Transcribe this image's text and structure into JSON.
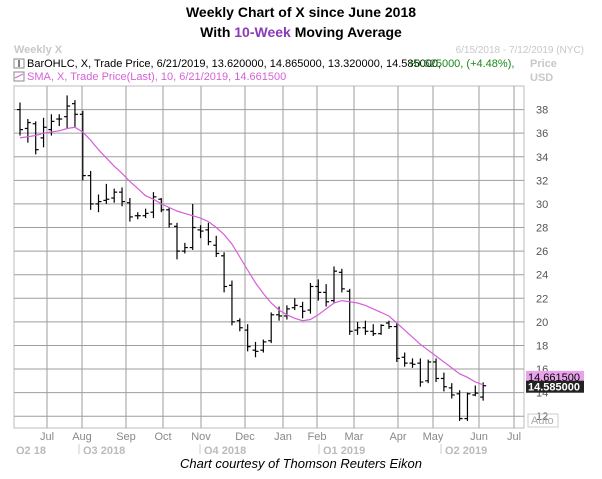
{
  "title_line1": "Weekly Chart of X since June 2018",
  "title_line2_before": "With ",
  "title_line2_highlight": "10-Week",
  "title_line2_after": " Moving Average",
  "caption": "Chart courtesy of Thomson Reuters Eikon",
  "panel": {
    "name": "Weekly X",
    "date_range": "6/15/2018 - 7/12/2019 (NYC)",
    "price_label_1": "Price",
    "price_label_2": "USD",
    "auto_label": "Auto",
    "legend_ohlc": "BarOHLC, X, Trade Price, 6/21/2019, 13.620000, 14.865000, 13.320000, 14.585000,",
    "legend_ohlc_change": "+0.625000, (+4.48%),",
    "legend_sma": "SMA, X, Trade Price(Last),  10, 6/21/2019, 14.661500",
    "sma_value_label": "14.661500",
    "close_value_label": "14.585000"
  },
  "colors": {
    "sma": "#d65fd9",
    "bars": "#000000",
    "grid": "#9e9e9e",
    "sma_tag": "#e9a3ea",
    "close_tag": "#222222",
    "change": "#1a8a1a",
    "title_highlight": "#8a3ab9"
  },
  "chart_data": {
    "type": "ohlc",
    "ylim": [
      11,
      40
    ],
    "yticks": [
      12,
      14,
      16,
      18,
      20,
      22,
      24,
      26,
      28,
      30,
      32,
      34,
      36,
      38
    ],
    "month_labels": [
      "Jul",
      "Aug",
      "Sep",
      "Oct",
      "Nov",
      "Dec",
      "Jan",
      "Feb",
      "Mar",
      "Apr",
      "May",
      "Jun",
      "Jul"
    ],
    "quarter_labels": [
      "Q2 18",
      "Q3 2018",
      "Q4 2018",
      "Q1 2019",
      "Q2 2019"
    ],
    "series": [
      {
        "name": "BarOHLC",
        "ohlc": [
          [
            38,
            38.6,
            35.8,
            36.3
          ],
          [
            36.4,
            37.2,
            35.2,
            36.9
          ],
          [
            36.8,
            37,
            34.2,
            34.6
          ],
          [
            35.6,
            37.3,
            34.8,
            36.5
          ],
          [
            36.3,
            37.6,
            35.8,
            37
          ],
          [
            37.2,
            37.6,
            36.6,
            37.2
          ],
          [
            37.4,
            39.2,
            36.4,
            38.3
          ],
          [
            38.5,
            38.8,
            36.5,
            37.6
          ],
          [
            37.6,
            37.9,
            32,
            32.4
          ],
          [
            32.4,
            32.8,
            29.5,
            30
          ],
          [
            30,
            30.8,
            29.3,
            30.2
          ],
          [
            30.3,
            31.7,
            30,
            30.4
          ],
          [
            30.5,
            31.3,
            30.1,
            31
          ],
          [
            31,
            31.4,
            29.8,
            30.2
          ],
          [
            30.1,
            30.5,
            28.5,
            28.9
          ],
          [
            29,
            29.3,
            28.7,
            29
          ],
          [
            29,
            29.6,
            28.8,
            29.2
          ],
          [
            29.3,
            31,
            28.8,
            30.6
          ],
          [
            30.4,
            30.5,
            29.3,
            29.5
          ],
          [
            29.5,
            29.7,
            28,
            28.3
          ],
          [
            28.1,
            28.4,
            25.3,
            26
          ],
          [
            26,
            26.7,
            25.8,
            26.3
          ],
          [
            26.3,
            30,
            26.1,
            28
          ],
          [
            27.8,
            28.2,
            27.1,
            27.7
          ],
          [
            27.8,
            28.4,
            26.5,
            26.8
          ],
          [
            26.5,
            27.3,
            25.5,
            25.8
          ],
          [
            25.6,
            25.9,
            22.5,
            23
          ],
          [
            23.1,
            23.5,
            19.7,
            20
          ],
          [
            20.1,
            20.3,
            19.2,
            19.5
          ],
          [
            19.3,
            19.8,
            17.5,
            17.9
          ],
          [
            17.6,
            18.3,
            17,
            17.5
          ],
          [
            17.6,
            18.5,
            17.4,
            18.3
          ],
          [
            18.4,
            20.8,
            18.2,
            20.6
          ],
          [
            20.6,
            21.3,
            20.1,
            20.5
          ],
          [
            20.5,
            21.4,
            20.2,
            21.1
          ],
          [
            21.2,
            22,
            21,
            21.4
          ],
          [
            21.3,
            21.7,
            20.3,
            20.9
          ],
          [
            21,
            23.3,
            20.7,
            23
          ],
          [
            23,
            23.6,
            21.8,
            22.5
          ],
          [
            22.5,
            23.2,
            21.3,
            21.7
          ],
          [
            21.8,
            24.7,
            21.6,
            24.3
          ],
          [
            24.2,
            24.5,
            22.5,
            22.8
          ],
          [
            22.6,
            22.8,
            18.9,
            19.2
          ],
          [
            19.3,
            20,
            18.9,
            19.5
          ],
          [
            19.5,
            20.1,
            18.9,
            19.2
          ],
          [
            19.2,
            19.8,
            18.8,
            19
          ],
          [
            19,
            19.8,
            18.9,
            19.7
          ],
          [
            19.9,
            20.1,
            19.4,
            19.6
          ],
          [
            19.6,
            19.9,
            16.6,
            16.9
          ],
          [
            17,
            17.4,
            16.2,
            16.5
          ],
          [
            16.5,
            16.9,
            16.1,
            16.4
          ],
          [
            16.5,
            16.9,
            14.5,
            14.9
          ],
          [
            15,
            16.8,
            14.8,
            16.6
          ],
          [
            16.6,
            16.9,
            14.9,
            15.2
          ],
          [
            15.2,
            15.7,
            14.1,
            14.5
          ],
          [
            14.4,
            14.8,
            13.5,
            13.8
          ],
          [
            13.9,
            14.2,
            11.6,
            11.8
          ],
          [
            11.8,
            14,
            11.6,
            13.9
          ],
          [
            13.8,
            14.6,
            13.7,
            13.96
          ],
          [
            13.62,
            14.865,
            13.32,
            14.585
          ]
        ]
      },
      {
        "name": "SMA",
        "values": [
          35.6,
          35.7,
          35.8,
          36.0,
          36.1,
          36.2,
          36.4,
          36.5,
          36.1,
          35.4,
          34.6,
          33.9,
          33.2,
          32.6,
          31.9,
          31.3,
          30.7,
          30.4,
          30.0,
          29.7,
          29.4,
          29.2,
          29.0,
          28.8,
          28.5,
          28.0,
          27.4,
          26.6,
          25.5,
          24.4,
          23.3,
          22.4,
          21.6,
          21.0,
          20.6,
          20.3,
          20.1,
          20.2,
          20.6,
          21.1,
          21.6,
          21.8,
          21.7,
          21.6,
          21.4,
          21.1,
          20.8,
          20.5,
          19.9,
          19.3,
          18.7,
          18.1,
          17.6,
          17.1,
          16.6,
          16.1,
          15.6,
          15.3,
          14.9,
          14.66
        ]
      }
    ]
  }
}
